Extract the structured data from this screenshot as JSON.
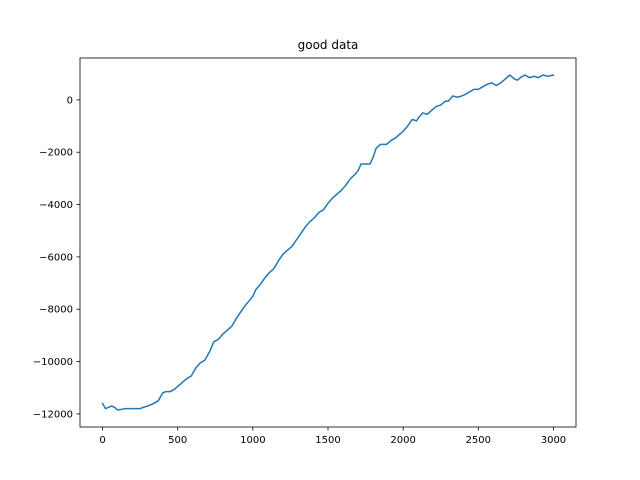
{
  "chart_data": {
    "type": "line",
    "title": "good data",
    "xlabel": "",
    "ylabel": "",
    "xlim": [
      -150,
      3150
    ],
    "ylim": [
      -12500,
      1600
    ],
    "grid": false,
    "legend": "none",
    "x_ticks": [
      0,
      500,
      1000,
      1500,
      2000,
      2500,
      3000
    ],
    "x_tick_labels": [
      "0",
      "500",
      "1000",
      "1500",
      "2000",
      "2500",
      "3000"
    ],
    "y_ticks": [
      -12000,
      -10000,
      -8000,
      -6000,
      -4000,
      -2000,
      0
    ],
    "y_tick_labels": [
      "−12000",
      "−10000",
      "−8000",
      "−6000",
      "−4000",
      "−2000",
      "0"
    ],
    "series": [
      {
        "color": "#1f77b4",
        "x": [
          0,
          20,
          40,
          60,
          80,
          100,
          150,
          200,
          250,
          270,
          300,
          340,
          370,
          400,
          420,
          450,
          480,
          500,
          530,
          560,
          590,
          620,
          650,
          680,
          710,
          740,
          770,
          800,
          830,
          860,
          890,
          920,
          950,
          980,
          1000,
          1020,
          1050,
          1080,
          1110,
          1140,
          1170,
          1200,
          1230,
          1260,
          1290,
          1320,
          1350,
          1380,
          1410,
          1440,
          1470,
          1500,
          1530,
          1560,
          1590,
          1620,
          1650,
          1680,
          1700,
          1720,
          1750,
          1780,
          1800,
          1820,
          1850,
          1870,
          1890,
          1920,
          1950,
          1980,
          2000,
          2030,
          2060,
          2090,
          2100,
          2130,
          2160,
          2190,
          2220,
          2250,
          2280,
          2300,
          2330,
          2360,
          2390,
          2410,
          2440,
          2470,
          2500,
          2530,
          2560,
          2590,
          2620,
          2650,
          2680,
          2710,
          2740,
          2760,
          2780,
          2810,
          2840,
          2870,
          2900,
          2930,
          2960,
          3000
        ],
        "y": [
          -11600,
          -11800,
          -11750,
          -11700,
          -11750,
          -11850,
          -11800,
          -11800,
          -11800,
          -11750,
          -11700,
          -11600,
          -11500,
          -11200,
          -11150,
          -11150,
          -11050,
          -10950,
          -10800,
          -10650,
          -10550,
          -10250,
          -10050,
          -9950,
          -9650,
          -9250,
          -9150,
          -8950,
          -8800,
          -8650,
          -8350,
          -8100,
          -7850,
          -7650,
          -7500,
          -7250,
          -7050,
          -6800,
          -6600,
          -6450,
          -6150,
          -5900,
          -5750,
          -5600,
          -5350,
          -5100,
          -4850,
          -4650,
          -4500,
          -4300,
          -4200,
          -3950,
          -3750,
          -3600,
          -3450,
          -3250,
          -3000,
          -2850,
          -2700,
          -2450,
          -2450,
          -2450,
          -2200,
          -1850,
          -1700,
          -1700,
          -1700,
          -1550,
          -1450,
          -1300,
          -1200,
          -1000,
          -750,
          -800,
          -700,
          -500,
          -550,
          -400,
          -250,
          -200,
          -50,
          -50,
          150,
          100,
          150,
          200,
          300,
          400,
          400,
          500,
          600,
          650,
          550,
          650,
          800,
          950,
          800,
          750,
          850,
          950,
          850,
          900,
          850,
          950,
          900,
          950
        ]
      }
    ]
  }
}
